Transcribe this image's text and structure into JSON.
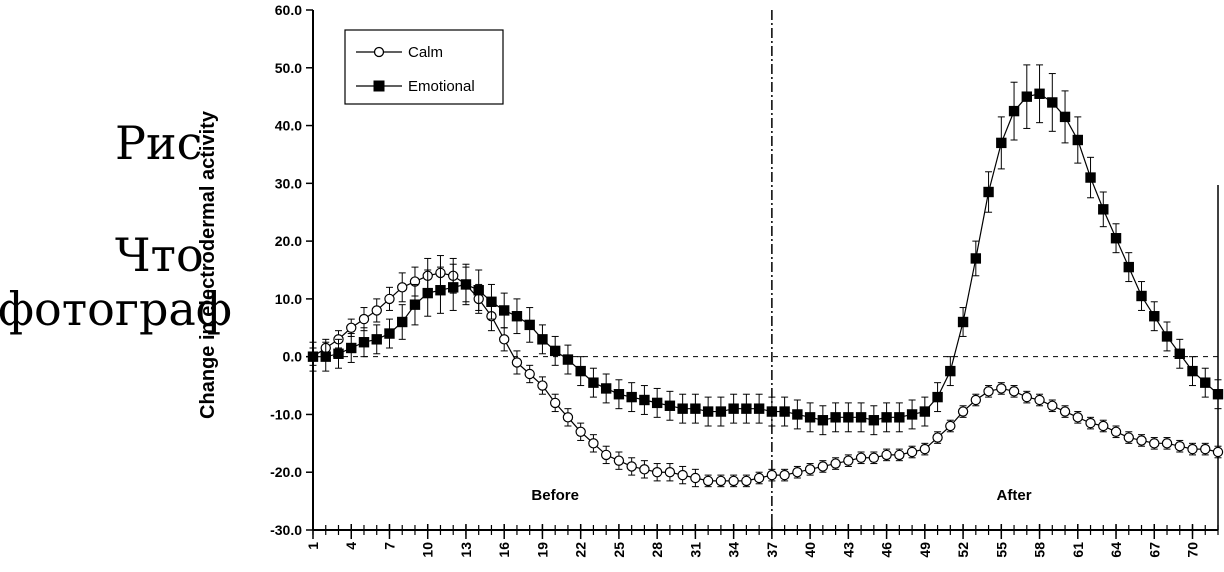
{
  "background_text": [
    "Рис",
    "Что",
    "фотограф"
  ],
  "chart_data": {
    "type": "line",
    "ylabel": "Change in electrodermal activity",
    "xlabel": "",
    "ylim": [
      -30,
      60
    ],
    "xlim": [
      1,
      72
    ],
    "y_ticks": [
      "-30.0",
      "-20.0",
      "-10.0",
      "0.0",
      "10.0",
      "20.0",
      "30.0",
      "40.0",
      "50.0",
      "60.0"
    ],
    "x_ticks": [
      1,
      4,
      7,
      10,
      13,
      16,
      19,
      22,
      25,
      28,
      31,
      34,
      37,
      40,
      43,
      46,
      49,
      52,
      55,
      58,
      61,
      64,
      67,
      70
    ],
    "divider_x": 37,
    "reference_line_y": 0,
    "regions": [
      {
        "label": "Before",
        "x": 20
      },
      {
        "label": "After",
        "x": 56
      }
    ],
    "legend_position": "top-left",
    "series": [
      {
        "name": "Calm",
        "marker": "open-circle",
        "x": [
          1,
          2,
          3,
          4,
          5,
          6,
          7,
          8,
          9,
          10,
          11,
          12,
          13,
          14,
          15,
          16,
          17,
          18,
          19,
          20,
          21,
          22,
          23,
          24,
          25,
          26,
          27,
          28,
          29,
          30,
          31,
          32,
          33,
          34,
          35,
          36,
          37,
          38,
          39,
          40,
          41,
          42,
          43,
          44,
          45,
          46,
          47,
          48,
          49,
          50,
          51,
          52,
          53,
          54,
          55,
          56,
          57,
          58,
          59,
          60,
          61,
          62,
          63,
          64,
          65,
          66,
          67,
          68,
          69,
          70,
          71,
          72
        ],
        "values": [
          0.0,
          1.5,
          3.0,
          5.0,
          6.5,
          8.0,
          10.0,
          12.0,
          13.0,
          14.0,
          14.5,
          14.0,
          12.5,
          10.0,
          7.0,
          3.0,
          -1.0,
          -3.0,
          -5.0,
          -8.0,
          -10.5,
          -13.0,
          -15.0,
          -17.0,
          -18.0,
          -19.0,
          -19.5,
          -20.0,
          -20.0,
          -20.5,
          -21.0,
          -21.5,
          -21.5,
          -21.5,
          -21.5,
          -21.0,
          -20.5,
          -20.5,
          -20.0,
          -19.5,
          -19.0,
          -18.5,
          -18.0,
          -17.5,
          -17.5,
          -17.0,
          -17.0,
          -16.5,
          -16.0,
          -14.0,
          -12.0,
          -9.5,
          -7.5,
          -6.0,
          -5.5,
          -6.0,
          -7.0,
          -7.5,
          -8.5,
          -9.5,
          -10.5,
          -11.5,
          -12.0,
          -13.0,
          -14.0,
          -14.5,
          -15.0,
          -15.0,
          -15.5,
          -16.0,
          -16.0,
          -16.5
        ],
        "error": [
          1.5,
          1.5,
          1.5,
          1.5,
          2.0,
          2.0,
          2.0,
          2.5,
          2.5,
          3.0,
          3.0,
          3.0,
          3.0,
          2.5,
          2.5,
          2.0,
          2.0,
          1.5,
          1.5,
          1.5,
          1.5,
          1.5,
          1.5,
          1.5,
          1.5,
          1.5,
          1.5,
          1.5,
          1.5,
          1.5,
          1.5,
          1.0,
          1.0,
          1.0,
          1.0,
          1.0,
          1.0,
          1.0,
          1.0,
          1.0,
          1.0,
          1.0,
          1.0,
          1.0,
          1.0,
          1.0,
          1.0,
          1.0,
          1.0,
          1.0,
          1.0,
          1.0,
          1.0,
          1.0,
          1.0,
          1.0,
          1.0,
          1.0,
          1.0,
          1.0,
          1.0,
          1.0,
          1.0,
          1.0,
          1.0,
          1.0,
          1.0,
          1.0,
          1.0,
          1.0,
          1.0,
          1.0
        ]
      },
      {
        "name": "Emotional",
        "marker": "filled-square",
        "x": [
          1,
          2,
          3,
          4,
          5,
          6,
          7,
          8,
          9,
          10,
          11,
          12,
          13,
          14,
          15,
          16,
          17,
          18,
          19,
          20,
          21,
          22,
          23,
          24,
          25,
          26,
          27,
          28,
          29,
          30,
          31,
          32,
          33,
          34,
          35,
          36,
          37,
          38,
          39,
          40,
          41,
          42,
          43,
          44,
          45,
          46,
          47,
          48,
          49,
          50,
          51,
          52,
          53,
          54,
          55,
          56,
          57,
          58,
          59,
          60,
          61,
          62,
          63,
          64,
          65,
          66,
          67,
          68,
          69,
          70,
          71,
          72
        ],
        "values": [
          0.0,
          0.0,
          0.5,
          1.5,
          2.5,
          3.0,
          4.0,
          6.0,
          9.0,
          11.0,
          11.5,
          12.0,
          12.5,
          11.5,
          9.5,
          8.0,
          7.0,
          5.5,
          3.0,
          1.0,
          -0.5,
          -2.5,
          -4.5,
          -5.5,
          -6.5,
          -7.0,
          -7.5,
          -8.0,
          -8.5,
          -9.0,
          -9.0,
          -9.5,
          -9.5,
          -9.0,
          -9.0,
          -9.0,
          -9.5,
          -9.5,
          -10.0,
          -10.5,
          -11.0,
          -10.5,
          -10.5,
          -10.5,
          -11.0,
          -10.5,
          -10.5,
          -10.0,
          -9.5,
          -7.0,
          -2.5,
          6.0,
          17.0,
          28.5,
          37.0,
          42.5,
          45.0,
          45.5,
          44.0,
          41.5,
          37.5,
          31.0,
          25.5,
          20.5,
          15.5,
          10.5,
          7.0,
          3.5,
          0.5,
          -2.5,
          -4.5,
          -6.5
        ],
        "error": [
          2.5,
          2.5,
          2.5,
          2.5,
          2.5,
          2.5,
          2.5,
          3.0,
          3.5,
          4.0,
          4.0,
          4.0,
          3.5,
          3.5,
          3.0,
          3.0,
          3.0,
          3.0,
          2.5,
          2.5,
          2.5,
          2.5,
          2.5,
          2.5,
          2.5,
          2.5,
          2.5,
          2.5,
          2.5,
          2.5,
          2.5,
          2.5,
          2.5,
          2.5,
          2.5,
          2.5,
          2.5,
          2.5,
          2.5,
          2.5,
          2.5,
          2.5,
          2.5,
          2.5,
          2.5,
          2.5,
          2.5,
          2.5,
          2.5,
          2.5,
          2.5,
          2.5,
          3.0,
          3.5,
          4.5,
          5.0,
          5.5,
          5.0,
          5.0,
          4.5,
          4.0,
          3.5,
          3.0,
          2.5,
          2.5,
          2.5,
          2.5,
          2.5,
          2.5,
          2.5,
          2.5,
          2.5
        ]
      }
    ]
  }
}
